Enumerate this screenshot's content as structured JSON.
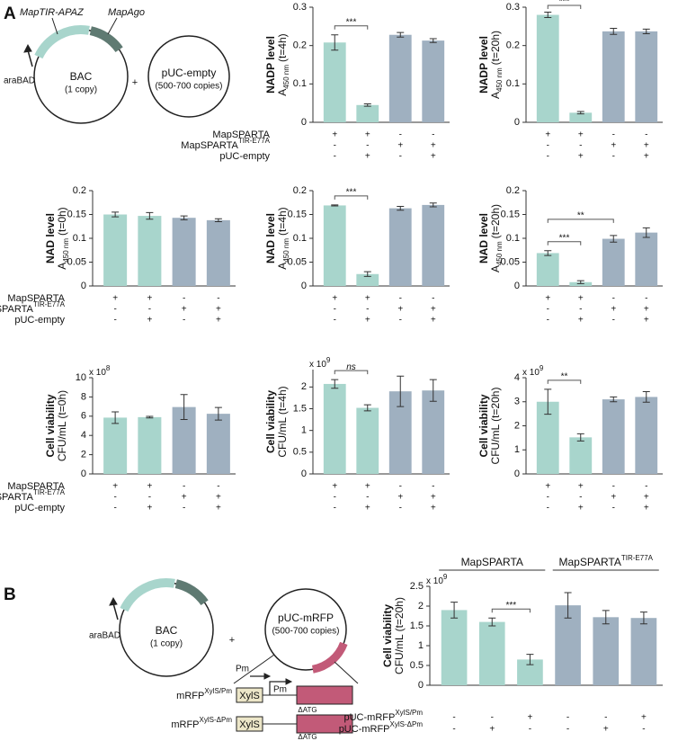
{
  "panels": {
    "a": "A",
    "b": "B"
  },
  "diagram_a": {
    "gene1": "MapTIR-APAZ",
    "gene2": "MapAgo",
    "promoter": "araBAD",
    "bac": "BAC",
    "bac_copy": "(1 copy)",
    "plus": "+",
    "plasmid": "pUC-empty",
    "plasmid_copy": "(500-700 copies)"
  },
  "diagram_b": {
    "promoter": "araBAD",
    "bac": "BAC",
    "bac_copy": "(1 copy)",
    "plus": "+",
    "plasmid": "pUC-mRFP",
    "plasmid_copy": "(500-700 copies)",
    "pm1": "Pm",
    "pm2": "Pm",
    "constructs": [
      {
        "name": "mRFP",
        "sup": "XylS/Pm",
        "box": "XylS",
        "note": "ΔATG"
      },
      {
        "name": "mRFP",
        "sup": "XylS-ΔPm",
        "box": "XylS",
        "note": "ΔATG"
      }
    ]
  },
  "chart_data": [
    {
      "type": "bar",
      "ylabel": "NADP level",
      "ylabel2": {
        "main": "A",
        "sub": "450 nm",
        "tail": "(t=4h)"
      },
      "values": [
        0.208,
        0.045,
        0.228,
        0.213
      ],
      "errors": [
        0.02,
        0.003,
        0.006,
        0.005
      ],
      "colors": [
        "#a8d5cc",
        "#a8d5cc",
        "#9fb0c0",
        "#9fb0c0"
      ],
      "ylim": [
        0,
        0.3
      ],
      "yticks": [
        0,
        0.1,
        0.2,
        0.3
      ],
      "significance": [
        {
          "from": 0,
          "to": 1,
          "label": "***"
        }
      ],
      "conditions": {
        "labels": [
          {
            "text": "MapSPARTA"
          },
          {
            "text": "MapSPARTA",
            "sup": "TIR-E77A"
          },
          {
            "text": "pUC-empty"
          }
        ],
        "signs": [
          [
            "+",
            "+",
            "-",
            "-"
          ],
          [
            "-",
            "-",
            "+",
            "+"
          ],
          [
            "-",
            "+",
            "-",
            "+"
          ]
        ]
      }
    },
    {
      "type": "bar",
      "ylabel": "NADP level",
      "ylabel2": {
        "main": "A",
        "sub": "450 nm",
        "tail": "(t=20h)"
      },
      "values": [
        0.28,
        0.025,
        0.237,
        0.237
      ],
      "errors": [
        0.007,
        0.003,
        0.008,
        0.006
      ],
      "colors": [
        "#a8d5cc",
        "#a8d5cc",
        "#9fb0c0",
        "#9fb0c0"
      ],
      "ylim": [
        0,
        0.3
      ],
      "yticks": [
        0,
        0.1,
        0.2,
        0.3
      ],
      "significance": [
        {
          "from": 0,
          "to": 1,
          "label": "***"
        }
      ],
      "conditions": {
        "signs": [
          [
            "+",
            "+",
            "-",
            "-"
          ],
          [
            "-",
            "-",
            "+",
            "+"
          ],
          [
            "-",
            "+",
            "-",
            "+"
          ]
        ]
      }
    },
    {
      "type": "bar",
      "ylabel": "NAD level",
      "ylabel2": {
        "main": "A",
        "sub": "450 nm",
        "tail": "(t=0h)"
      },
      "values": [
        0.15,
        0.147,
        0.143,
        0.138
      ],
      "errors": [
        0.005,
        0.007,
        0.004,
        0.003
      ],
      "colors": [
        "#a8d5cc",
        "#a8d5cc",
        "#9fb0c0",
        "#9fb0c0"
      ],
      "ylim": [
        0,
        0.2
      ],
      "yticks": [
        0,
        0.05,
        0.1,
        0.15,
        0.2
      ],
      "significance": [],
      "conditions": {
        "labels": [
          {
            "text": "MapSPARTA"
          },
          {
            "text": "MapSPARTA",
            "sup": "TIR-E77A"
          },
          {
            "text": "pUC-empty"
          }
        ],
        "signs": [
          [
            "+",
            "+",
            "-",
            "-"
          ],
          [
            "-",
            "-",
            "+",
            "+"
          ],
          [
            "-",
            "+",
            "-",
            "+"
          ]
        ]
      }
    },
    {
      "type": "bar",
      "ylabel": "NAD level",
      "ylabel2": {
        "main": "A",
        "sub": "450 nm",
        "tail": "(t=4h)"
      },
      "values": [
        0.169,
        0.025,
        0.163,
        0.17
      ],
      "errors": [
        0.001,
        0.005,
        0.004,
        0.004
      ],
      "colors": [
        "#a8d5cc",
        "#a8d5cc",
        "#9fb0c0",
        "#9fb0c0"
      ],
      "ylim": [
        0,
        0.2
      ],
      "yticks": [
        0,
        0.05,
        0.1,
        0.15,
        0.2
      ],
      "significance": [
        {
          "from": 0,
          "to": 1,
          "label": "***"
        }
      ],
      "conditions": {
        "signs": [
          [
            "+",
            "+",
            "-",
            "-"
          ],
          [
            "-",
            "-",
            "+",
            "+"
          ],
          [
            "-",
            "+",
            "-",
            "+"
          ]
        ]
      }
    },
    {
      "type": "bar",
      "ylabel": "NAD level",
      "ylabel2": {
        "main": "A",
        "sub": "450 nm",
        "tail": "(t=20h)"
      },
      "values": [
        0.069,
        0.008,
        0.099,
        0.112
      ],
      "errors": [
        0.005,
        0.003,
        0.007,
        0.01
      ],
      "colors": [
        "#a8d5cc",
        "#a8d5cc",
        "#9fb0c0",
        "#9fb0c0"
      ],
      "ylim": [
        0,
        0.2
      ],
      "yticks": [
        0,
        0.05,
        0.1,
        0.15,
        0.2
      ],
      "significance": [
        {
          "from": 0,
          "to": 1,
          "label": "***"
        },
        {
          "from": 0,
          "to": 2,
          "label": "**"
        }
      ],
      "conditions": {
        "signs": [
          [
            "+",
            "+",
            "-",
            "-"
          ],
          [
            "-",
            "-",
            "+",
            "+"
          ],
          [
            "-",
            "+",
            "-",
            "+"
          ]
        ]
      }
    },
    {
      "type": "bar",
      "ylabel": "Cell viability",
      "ylabel2": {
        "main": "CFU/mL (t=0h)"
      },
      "scale": {
        "base": "x 10",
        "exp": "8"
      },
      "values": [
        5.85,
        5.9,
        6.95,
        6.25
      ],
      "errors": [
        0.6,
        0.08,
        1.3,
        0.65
      ],
      "colors": [
        "#a8d5cc",
        "#a8d5cc",
        "#9fb0c0",
        "#9fb0c0"
      ],
      "ylim": [
        0,
        10
      ],
      "yticks": [
        0,
        2,
        4,
        6,
        8,
        10
      ],
      "significance": [],
      "conditions": {
        "labels": [
          {
            "text": "MapSPARTA"
          },
          {
            "text": "MapSPARTA",
            "sup": "TIR-E77A"
          },
          {
            "text": "pUC-empty"
          }
        ],
        "signs": [
          [
            "+",
            "+",
            "-",
            "-"
          ],
          [
            "-",
            "-",
            "+",
            "+"
          ],
          [
            "-",
            "+",
            "-",
            "+"
          ]
        ]
      }
    },
    {
      "type": "bar",
      "ylabel": "Cell viability",
      "ylabel2": {
        "main": "CFU/mL (t=4h)"
      },
      "scale": {
        "base": "x 10",
        "exp": "9"
      },
      "values": [
        2.07,
        1.52,
        1.9,
        1.92
      ],
      "errors": [
        0.1,
        0.07,
        0.35,
        0.25
      ],
      "colors": [
        "#a8d5cc",
        "#a8d5cc",
        "#9fb0c0",
        "#9fb0c0"
      ],
      "ylim": [
        0,
        2.4
      ],
      "yticks": [
        0,
        0.5,
        1,
        1.5,
        2
      ],
      "significance": [
        {
          "from": 0,
          "to": 1,
          "label": "ns"
        }
      ],
      "conditions": {
        "signs": [
          [
            "+",
            "+",
            "-",
            "-"
          ],
          [
            "-",
            "-",
            "+",
            "+"
          ],
          [
            "-",
            "+",
            "-",
            "+"
          ]
        ]
      }
    },
    {
      "type": "bar",
      "ylabel": "Cell viability",
      "ylabel2": {
        "main": "CFU/mL (t=20h)"
      },
      "scale": {
        "base": "x 10",
        "exp": "9"
      },
      "values": [
        3.0,
        1.52,
        3.1,
        3.2
      ],
      "errors": [
        0.52,
        0.15,
        0.1,
        0.22
      ],
      "colors": [
        "#a8d5cc",
        "#a8d5cc",
        "#9fb0c0",
        "#9fb0c0"
      ],
      "ylim": [
        0,
        4
      ],
      "yticks": [
        0,
        1,
        2,
        3,
        4
      ],
      "significance": [
        {
          "from": 0,
          "to": 1,
          "label": "**"
        }
      ],
      "conditions": {
        "signs": [
          [
            "+",
            "+",
            "-",
            "-"
          ],
          [
            "-",
            "-",
            "+",
            "+"
          ],
          [
            "-",
            "+",
            "-",
            "+"
          ]
        ]
      }
    },
    {
      "type": "bar",
      "ylabel": "Cell viability",
      "ylabel2": {
        "main": "CFU/mL (t=20h)"
      },
      "scale": {
        "base": "x 10",
        "exp": "9"
      },
      "values": [
        1.9,
        1.6,
        0.65,
        2.02,
        1.72,
        1.7
      ],
      "errors": [
        0.2,
        0.1,
        0.13,
        0.32,
        0.17,
        0.15
      ],
      "colors": [
        "#a8d5cc",
        "#a8d5cc",
        "#a8d5cc",
        "#9fb0c0",
        "#9fb0c0",
        "#9fb0c0"
      ],
      "ylim": [
        0,
        2.5
      ],
      "yticks": [
        0,
        0.5,
        1,
        1.5,
        2,
        2.5
      ],
      "significance": [
        {
          "from": 1,
          "to": 2,
          "label": "***"
        }
      ],
      "groups": [
        {
          "label": {
            "text": "MapSPARTA"
          },
          "from": 0,
          "to": 2
        },
        {
          "label": {
            "text": "MapSPARTA",
            "sup": "TIR-E77A"
          },
          "from": 3,
          "to": 5
        }
      ],
      "conditions": {
        "labels": [
          {
            "text": "pUC-mRFP",
            "sup": "XylS/Pm"
          },
          {
            "text": "pUC-mRFP",
            "sup": "XylS-ΔPm"
          }
        ],
        "signs": [
          [
            "-",
            "-",
            "+",
            "-",
            "-",
            "+"
          ],
          [
            "-",
            "+",
            "-",
            "-",
            "+",
            "-"
          ]
        ]
      }
    }
  ]
}
